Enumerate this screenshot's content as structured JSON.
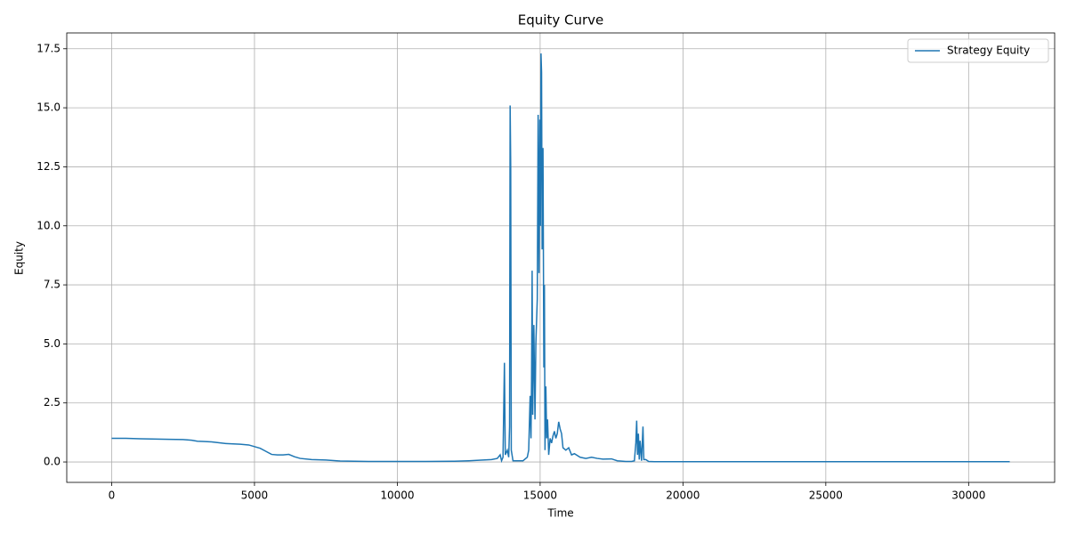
{
  "chart_data": {
    "type": "line",
    "title": "Equity Curve",
    "x_label": "Time",
    "y_label": "Equity",
    "x": [
      0,
      500,
      1000,
      2000,
      2500,
      2800,
      3000,
      3200,
      3500,
      4000,
      4500,
      4800,
      5000,
      5200,
      5400,
      5600,
      5800,
      6000,
      6200,
      6400,
      6600,
      7000,
      7500,
      8000,
      9000,
      10000,
      11000,
      12000,
      12500,
      13000,
      13300,
      13500,
      13600,
      13650,
      13700,
      13750,
      13780,
      13850,
      13900,
      13930,
      13950,
      13970,
      13990,
      14050,
      14200,
      14400,
      14550,
      14600,
      14650,
      14680,
      14700,
      14720,
      14740,
      14780,
      14820,
      14850,
      14900,
      14930,
      14960,
      14990,
      15010,
      15030,
      15050,
      15070,
      15100,
      15130,
      15150,
      15170,
      15200,
      15230,
      15260,
      15300,
      15350,
      15400,
      15450,
      15500,
      15550,
      15600,
      15650,
      15700,
      15750,
      15800,
      15900,
      16000,
      16100,
      16200,
      16400,
      16600,
      16800,
      17000,
      17200,
      17500,
      17700,
      18000,
      18200,
      18300,
      18350,
      18380,
      18410,
      18440,
      18470,
      18500,
      18550,
      18600,
      18630,
      18700,
      18800,
      19000,
      20000,
      25000,
      30000,
      31440
    ],
    "series": [
      {
        "name": "Strategy Equity",
        "color": "#1f77b4",
        "values": [
          1.0,
          1.0,
          0.98,
          0.96,
          0.95,
          0.92,
          0.88,
          0.87,
          0.85,
          0.78,
          0.75,
          0.72,
          0.65,
          0.58,
          0.45,
          0.32,
          0.3,
          0.3,
          0.32,
          0.22,
          0.15,
          0.1,
          0.08,
          0.04,
          0.02,
          0.02,
          0.02,
          0.03,
          0.05,
          0.08,
          0.1,
          0.15,
          0.3,
          0.05,
          0.2,
          4.2,
          0.3,
          0.5,
          0.2,
          1.5,
          15.1,
          12.5,
          0.5,
          0.05,
          0.05,
          0.05,
          0.2,
          0.5,
          2.8,
          1.0,
          3.5,
          8.1,
          2.0,
          5.8,
          1.8,
          5.0,
          6.9,
          14.7,
          8.0,
          14.5,
          10.0,
          17.3,
          16.5,
          9.0,
          13.3,
          4.0,
          7.5,
          0.5,
          3.2,
          1.0,
          1.8,
          0.3,
          1.0,
          0.8,
          1.1,
          1.3,
          1.0,
          1.2,
          1.7,
          1.4,
          1.2,
          0.6,
          0.5,
          0.6,
          0.3,
          0.35,
          0.2,
          0.15,
          0.2,
          0.15,
          0.12,
          0.13,
          0.05,
          0.02,
          0.02,
          0.05,
          0.8,
          1.75,
          0.3,
          1.2,
          0.1,
          0.9,
          0.05,
          1.5,
          0.1,
          0.1,
          0.02,
          0.01,
          0.01,
          0.01,
          0.01,
          0.01
        ]
      }
    ],
    "xlim": [
      -1572,
      33012
    ],
    "ylim": [
      -0.865,
      18.17
    ],
    "xticks": [
      0,
      5000,
      10000,
      15000,
      20000,
      25000,
      30000
    ],
    "yticks": [
      {
        "value": 0,
        "label": "0.0"
      },
      2.5,
      {
        "value": 5,
        "label": "5.0"
      },
      7.5,
      {
        "value": 10,
        "label": "10.0"
      },
      12.5,
      {
        "value": 15,
        "label": "15.0"
      },
      17.5
    ],
    "grid": true,
    "legend": "upper right"
  }
}
